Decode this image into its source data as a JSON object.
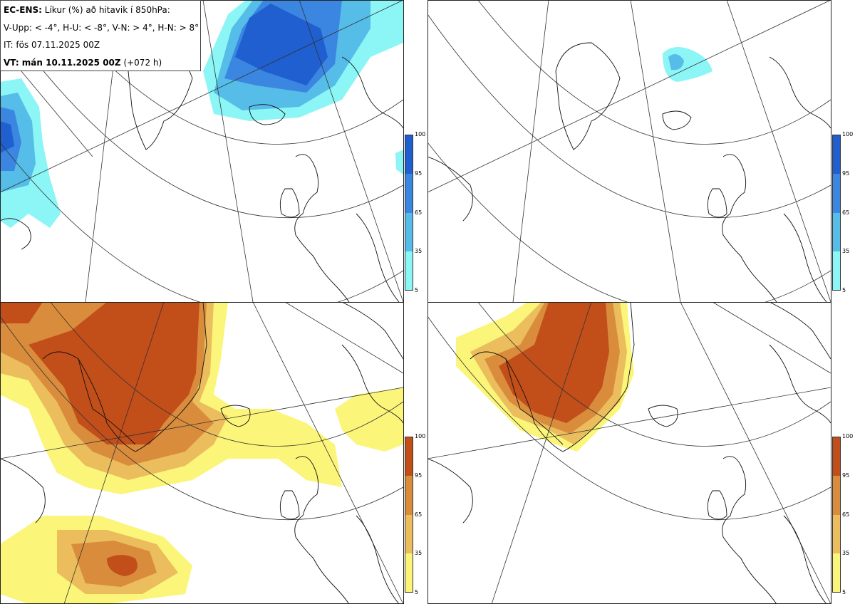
{
  "header": {
    "model_label": "EC-ENS:",
    "title_rest": "Líkur (%) að hitavik í 850hPa:",
    "thresholds": "V-Upp: < -4°, H-U: < -8°, V-N: > 4°, H-N: > 8°",
    "init_time": "IT: fös 07.11.2025 00Z",
    "valid_label": "VT: mán 10.11.2025 00Z",
    "lead_time": "(+072 h)"
  },
  "panels": [
    {
      "id": "V-Upp",
      "description": "probability temperature anomaly < -4",
      "palette": "cold"
    },
    {
      "id": "H-U",
      "description": "probability temperature anomaly < -8",
      "palette": "cold"
    },
    {
      "id": "V-N",
      "description": "probability temperature anomaly > 4",
      "palette": "warm"
    },
    {
      "id": "H-N",
      "description": "probability temperature anomaly > 8",
      "palette": "warm"
    }
  ],
  "colorbars": {
    "levels": [
      "100",
      "95",
      "65",
      "35",
      "5"
    ],
    "cold_colors": [
      "#1f5fcf",
      "#3a86e0",
      "#55bde8",
      "#8cf5f5"
    ],
    "warm_colors": [
      "#c24e1a",
      "#d98c3c",
      "#ebbd5c",
      "#fbf57a"
    ]
  }
}
